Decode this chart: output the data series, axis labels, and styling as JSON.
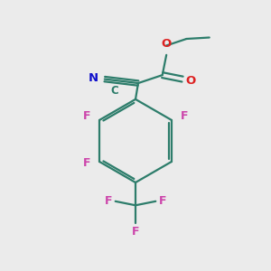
{
  "background_color": "#ebebeb",
  "bond_color": "#2d7d6b",
  "o_color": "#dd2222",
  "f_color": "#cc44aa",
  "n_color": "#1111cc",
  "n_label": "N",
  "c_label": "C",
  "o_label": "O",
  "f_label": "F",
  "figsize": [
    3.0,
    3.0
  ],
  "dpi": 100
}
